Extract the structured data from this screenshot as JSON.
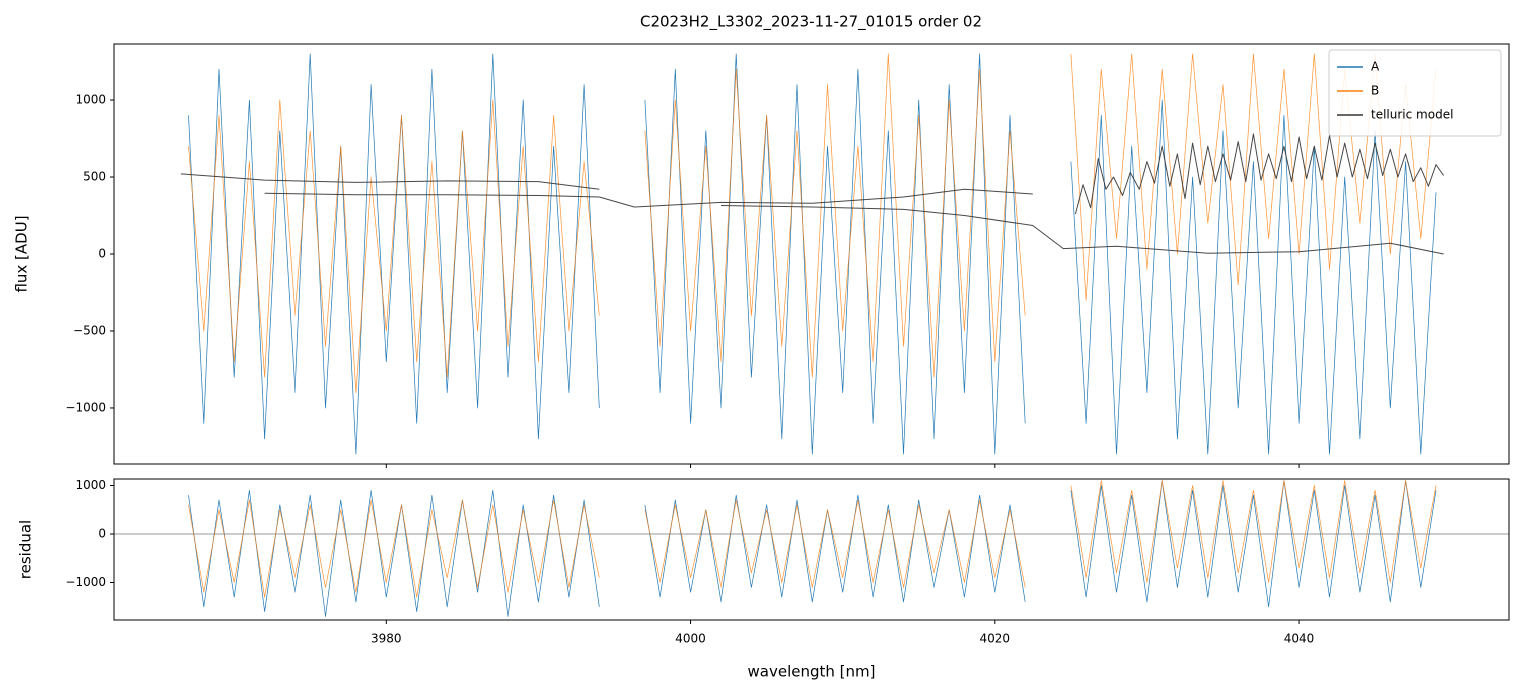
{
  "chart_data": [
    {
      "type": "line",
      "title": "C2023H2_L3302_2023-11-27_01015  order 02",
      "ylabel": "flux [ADU]",
      "xlim": [
        3962.1,
        4053.8
      ],
      "ylim": [
        -1364,
        1364
      ],
      "xticks": [
        3980,
        4000,
        4020,
        4040
      ],
      "show_xtick_labels": false,
      "yticks": [
        {
          "value": -1000,
          "label": "−1000"
        },
        {
          "value": -500,
          "label": "−500"
        },
        0,
        500,
        1000
      ],
      "legend": "upper right",
      "x": [
        3967,
        3968,
        3969,
        3970,
        3971,
        3972,
        3973,
        3974,
        3975,
        3976,
        3977,
        3978,
        3979,
        3980,
        3981,
        3982,
        3983,
        3984,
        3985,
        3986,
        3987,
        3988,
        3989,
        3990,
        3991,
        3992,
        3993,
        3994,
        3995,
        3996,
        3997,
        3998,
        3999,
        4000,
        4001,
        4002,
        4003,
        4004,
        4005,
        4006,
        4007,
        4008,
        4009,
        4010,
        4011,
        4012,
        4013,
        4014,
        4015,
        4016,
        4017,
        4018,
        4019,
        4020,
        4021,
        4022,
        4023,
        4024,
        4025,
        4026,
        4027,
        4028,
        4029,
        4030,
        4031,
        4032,
        4033,
        4034,
        4035,
        4036,
        4037,
        4038,
        4039,
        4040,
        4041,
        4042,
        4043,
        4044,
        4045,
        4046,
        4047,
        4048,
        4049
      ],
      "series": [
        {
          "name": "A",
          "color": "#1f77b4",
          "values": [
            900,
            -1100,
            1200,
            -800,
            1000,
            -1200,
            800,
            -900,
            1300,
            -1000,
            700,
            -1300,
            1100,
            -700,
            900,
            -1100,
            1200,
            -900,
            800,
            -1000,
            1300,
            -800,
            1000,
            -1200,
            700,
            -900,
            1100,
            -1000,
            null,
            null,
            1000,
            -900,
            1200,
            -1100,
            800,
            -1000,
            1300,
            -800,
            900,
            -1200,
            1100,
            -1300,
            700,
            -900,
            1200,
            -1100,
            800,
            -1300,
            1000,
            -1200,
            1100,
            -900,
            1300,
            -1300,
            900,
            -1100,
            null,
            null,
            600,
            -1100,
            900,
            -1300,
            700,
            -900,
            1000,
            -1200,
            500,
            -1300,
            800,
            -1000,
            600,
            -1300,
            900,
            -1100,
            700,
            -1300,
            500,
            -1200,
            800,
            -1000,
            600,
            -1300,
            400
          ]
        },
        {
          "name": "B",
          "color": "#ff7f0e",
          "values": [
            700,
            -500,
            900,
            -700,
            600,
            -800,
            1000,
            -400,
            800,
            -600,
            700,
            -900,
            500,
            -500,
            900,
            -700,
            600,
            -800,
            800,
            -500,
            1000,
            -600,
            700,
            -700,
            900,
            -500,
            600,
            -400,
            null,
            null,
            800,
            -600,
            1000,
            -500,
            700,
            -700,
            1200,
            -400,
            900,
            -600,
            800,
            -800,
            1100,
            -500,
            700,
            -700,
            1300,
            -600,
            900,
            -800,
            1000,
            -500,
            1200,
            -700,
            800,
            -400,
            null,
            null,
            1300,
            -300,
            1200,
            100,
            1300,
            -100,
            1200,
            0,
            1300,
            200,
            1100,
            -200,
            1300,
            100,
            1200,
            0,
            1300,
            -100,
            1200,
            200,
            1300,
            0,
            1100,
            100,
            1200
          ]
        },
        {
          "name": "telluric model",
          "color": "#333333",
          "x": [
            3966.5,
            3972,
            3978,
            3984,
            3990,
            3994,
            3966.5,
            3972,
            3978,
            3984,
            3990,
            3994,
            3996.3,
            4002,
            4008,
            4014,
            4018,
            4022.5,
            3996.3,
            4002,
            4008,
            4014,
            4018,
            4022.5,
            4024.5,
            4028,
            4034,
            4040,
            4046,
            4049.5,
            4024.5,
            4025.3,
            4025.8,
            4026.3,
            4026.8,
            4027.3,
            4027.8,
            4028.4,
            4028.9,
            4029.5,
            4030.0,
            4030.5,
            4031.0,
            4031.5,
            4032.0,
            4032.5,
            4033.0,
            4033.5,
            4034.0,
            4034.5,
            4035.0,
            4035.5,
            4036.0,
            4036.5,
            4037.0,
            4037.5,
            4038.0,
            4038.5,
            4039.0,
            4039.5,
            4040.0,
            4040.5,
            4041.0,
            4041.5,
            4042.0,
            4042.5,
            4043.0,
            4043.5,
            4044.0,
            4044.5,
            4045.0,
            4045.5,
            4046.0,
            4046.5,
            4047.0,
            4047.5,
            4048.0,
            4048.5,
            4049.0,
            4049.5
          ],
          "values": [
            520,
            480,
            465,
            475,
            470,
            420,
            null,
            395,
            385,
            385,
            380,
            370,
            305,
            335,
            330,
            370,
            420,
            390,
            null,
            315,
            305,
            290,
            250,
            185,
            35,
            50,
            5,
            15,
            70,
            0,
            null,
            260,
            450,
            300,
            620,
            420,
            500,
            380,
            530,
            420,
            600,
            460,
            700,
            440,
            650,
            360,
            720,
            450,
            700,
            470,
            650,
            480,
            730,
            470,
            780,
            480,
            650,
            490,
            700,
            470,
            760,
            490,
            700,
            480,
            770,
            500,
            720,
            500,
            680,
            490,
            720,
            510,
            680,
            500,
            650,
            470,
            560,
            440,
            580,
            510
          ]
        }
      ]
    },
    {
      "type": "line",
      "ylabel": "residual",
      "xlabel": "wavelength [nm]",
      "xlim": [
        3962.1,
        4053.8
      ],
      "ylim": [
        -1773,
        1134
      ],
      "xticks": [
        3980,
        4000,
        4020,
        4040
      ],
      "show_xtick_labels": true,
      "yticks": [
        {
          "value": -1000,
          "label": "−1000"
        },
        0,
        1000
      ],
      "hline": 0,
      "x": [
        3967,
        3968,
        3969,
        3970,
        3971,
        3972,
        3973,
        3974,
        3975,
        3976,
        3977,
        3978,
        3979,
        3980,
        3981,
        3982,
        3983,
        3984,
        3985,
        3986,
        3987,
        3988,
        3989,
        3990,
        3991,
        3992,
        3993,
        3994,
        3995,
        3996,
        3997,
        3998,
        3999,
        4000,
        4001,
        4002,
        4003,
        4004,
        4005,
        4006,
        4007,
        4008,
        4009,
        4010,
        4011,
        4012,
        4013,
        4014,
        4015,
        4016,
        4017,
        4018,
        4019,
        4020,
        4021,
        4022,
        4023,
        4024,
        4025,
        4026,
        4027,
        4028,
        4029,
        4030,
        4031,
        4032,
        4033,
        4034,
        4035,
        4036,
        4037,
        4038,
        4039,
        4040,
        4041,
        4042,
        4043,
        4044,
        4045,
        4046,
        4047,
        4048,
        4049
      ],
      "series": [
        {
          "color": "#1f77b4",
          "values": [
            800,
            -1500,
            700,
            -1300,
            900,
            -1600,
            600,
            -1200,
            800,
            -1700,
            700,
            -1400,
            900,
            -1300,
            600,
            -1600,
            800,
            -1500,
            700,
            -1200,
            900,
            -1700,
            600,
            -1400,
            800,
            -1300,
            700,
            -1500,
            null,
            null,
            600,
            -1300,
            700,
            -1200,
            500,
            -1400,
            800,
            -1100,
            600,
            -1300,
            700,
            -1400,
            500,
            -1200,
            800,
            -1300,
            600,
            -1400,
            700,
            -1100,
            500,
            -1300,
            800,
            -1200,
            600,
            -1400,
            null,
            null,
            900,
            -1300,
            1000,
            -1200,
            800,
            -1400,
            1100,
            -1100,
            900,
            -1300,
            1000,
            -1200,
            800,
            -1500,
            1100,
            -1100,
            900,
            -1300,
            1000,
            -1200,
            800,
            -1400,
            1100,
            -1100,
            900
          ]
        },
        {
          "color": "#ff7f0e",
          "values": [
            600,
            -1200,
            500,
            -1000,
            700,
            -1300,
            500,
            -900,
            600,
            -1100,
            500,
            -1200,
            700,
            -1000,
            600,
            -1300,
            500,
            -900,
            700,
            -1100,
            600,
            -1200,
            500,
            -1000,
            700,
            -1100,
            600,
            -900,
            null,
            null,
            500,
            -1000,
            600,
            -900,
            500,
            -1100,
            700,
            -800,
            500,
            -1000,
            600,
            -1100,
            500,
            -900,
            700,
            -1000,
            500,
            -1100,
            600,
            -800,
            500,
            -1000,
            700,
            -900,
            500,
            -1100,
            null,
            null,
            1000,
            -900,
            1100,
            -800,
            900,
            -1000,
            1100,
            -700,
            1000,
            -900,
            1100,
            -800,
            900,
            -1000,
            1100,
            -700,
            1000,
            -900,
            1100,
            -800,
            900,
            -1000,
            1100,
            -700,
            1000
          ]
        }
      ]
    }
  ]
}
